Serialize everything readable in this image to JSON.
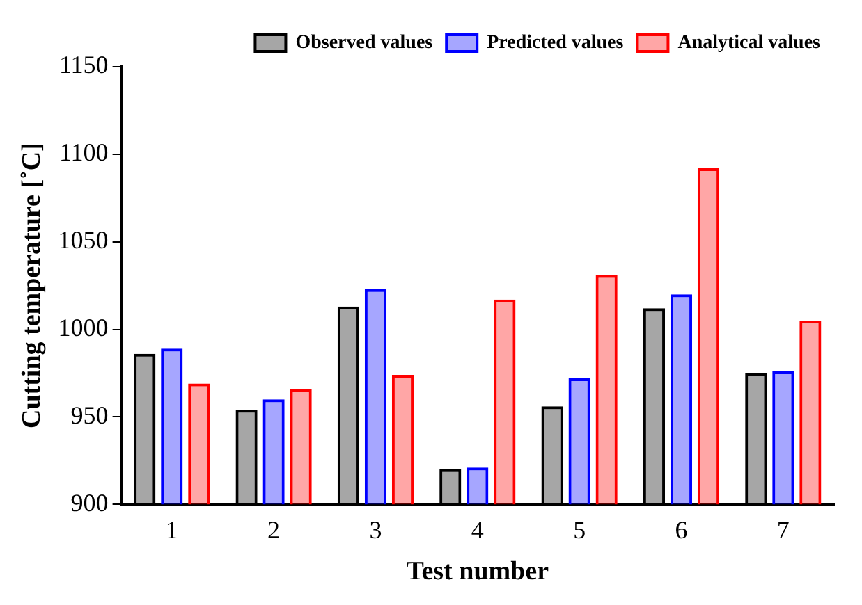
{
  "chart_data": {
    "type": "bar",
    "xlabel": "Test number",
    "ylabel": "Cutting temperature [˚C]",
    "categories": [
      "1",
      "2",
      "3",
      "4",
      "5",
      "6",
      "7"
    ],
    "series": [
      {
        "name": "Observed values",
        "color": "#000000",
        "values": [
          986,
          954,
          1013,
          920,
          956,
          1012,
          975
        ]
      },
      {
        "name": "Predicted values",
        "color": "#0000ff",
        "values": [
          989,
          960,
          1023,
          921,
          972,
          1020,
          976
        ]
      },
      {
        "name": "Analytical values",
        "color": "#ff0000",
        "values": [
          969,
          966,
          974,
          1017,
          1031,
          1092,
          1005
        ]
      }
    ],
    "ylim": [
      900,
      1150
    ],
    "yticks": [
      900,
      950,
      1000,
      1050,
      1100,
      1150
    ],
    "grid": false,
    "legend": "top"
  }
}
